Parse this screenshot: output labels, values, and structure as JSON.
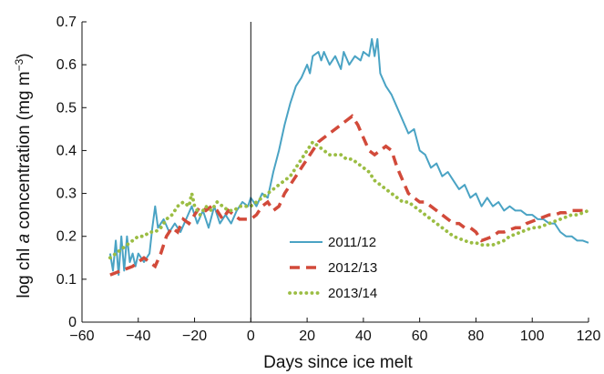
{
  "chart_data": {
    "type": "line",
    "title": "",
    "xlabel": "Days since ice melt",
    "ylabel_parts": {
      "prefix": "log chl ",
      "italic": "a",
      "middle": " concentration (mg m",
      "sup": "−3",
      "suffix": ")"
    },
    "xlim": [
      -60,
      120
    ],
    "ylim": [
      0,
      0.7
    ],
    "xticks": [
      -60,
      -40,
      -20,
      0,
      20,
      40,
      60,
      80,
      100,
      120
    ],
    "xtick_labels": [
      "−60",
      "−40",
      "−20",
      "0",
      "20",
      "40",
      "60",
      "80",
      "100",
      "120"
    ],
    "yticks": [
      0,
      0.1,
      0.2,
      0.3,
      0.4,
      0.5,
      0.6,
      0.7
    ],
    "ytick_labels": [
      "0",
      "0.1",
      "0.2",
      "0.3",
      "0.4",
      "0.5",
      "0.6",
      "0.7"
    ],
    "reference_line_x": 0,
    "grid": false,
    "legend_position": "center",
    "series": [
      {
        "name": "2011/12",
        "color": "#4aa3c4",
        "style": "solid",
        "points": [
          [
            -50,
            0.16
          ],
          [
            -49,
            0.12
          ],
          [
            -48,
            0.19
          ],
          [
            -47,
            0.11
          ],
          [
            -46,
            0.2
          ],
          [
            -45,
            0.12
          ],
          [
            -44,
            0.2
          ],
          [
            -43,
            0.14
          ],
          [
            -42,
            0.16
          ],
          [
            -41,
            0.13
          ],
          [
            -40,
            0.16
          ],
          [
            -38,
            0.14
          ],
          [
            -36,
            0.16
          ],
          [
            -35,
            0.22
          ],
          [
            -34,
            0.27
          ],
          [
            -33,
            0.22
          ],
          [
            -31,
            0.24
          ],
          [
            -29,
            0.21
          ],
          [
            -27,
            0.23
          ],
          [
            -25,
            0.21
          ],
          [
            -23,
            0.24
          ],
          [
            -21,
            0.27
          ],
          [
            -19,
            0.23
          ],
          [
            -17,
            0.26
          ],
          [
            -15,
            0.22
          ],
          [
            -13,
            0.27
          ],
          [
            -11,
            0.23
          ],
          [
            -9,
            0.25
          ],
          [
            -7,
            0.23
          ],
          [
            -5,
            0.26
          ],
          [
            -3,
            0.28
          ],
          [
            -1,
            0.27
          ],
          [
            0,
            0.29
          ],
          [
            2,
            0.27
          ],
          [
            4,
            0.3
          ],
          [
            6,
            0.29
          ],
          [
            8,
            0.35
          ],
          [
            10,
            0.4
          ],
          [
            12,
            0.46
          ],
          [
            14,
            0.51
          ],
          [
            16,
            0.55
          ],
          [
            18,
            0.57
          ],
          [
            20,
            0.6
          ],
          [
            21,
            0.58
          ],
          [
            22,
            0.62
          ],
          [
            24,
            0.63
          ],
          [
            25,
            0.61
          ],
          [
            26,
            0.63
          ],
          [
            28,
            0.6
          ],
          [
            30,
            0.62
          ],
          [
            32,
            0.59
          ],
          [
            33,
            0.63
          ],
          [
            35,
            0.6
          ],
          [
            37,
            0.62
          ],
          [
            39,
            0.61
          ],
          [
            40,
            0.63
          ],
          [
            42,
            0.62
          ],
          [
            43,
            0.66
          ],
          [
            44,
            0.62
          ],
          [
            45,
            0.66
          ],
          [
            46,
            0.58
          ],
          [
            48,
            0.55
          ],
          [
            50,
            0.53
          ],
          [
            52,
            0.5
          ],
          [
            54,
            0.47
          ],
          [
            56,
            0.44
          ],
          [
            58,
            0.45
          ],
          [
            60,
            0.4
          ],
          [
            62,
            0.39
          ],
          [
            64,
            0.36
          ],
          [
            66,
            0.37
          ],
          [
            68,
            0.34
          ],
          [
            70,
            0.35
          ],
          [
            72,
            0.33
          ],
          [
            74,
            0.31
          ],
          [
            76,
            0.32
          ],
          [
            78,
            0.29
          ],
          [
            80,
            0.3
          ],
          [
            82,
            0.27
          ],
          [
            84,
            0.29
          ],
          [
            86,
            0.27
          ],
          [
            88,
            0.28
          ],
          [
            90,
            0.26
          ],
          [
            92,
            0.27
          ],
          [
            94,
            0.26
          ],
          [
            96,
            0.26
          ],
          [
            98,
            0.25
          ],
          [
            100,
            0.25
          ],
          [
            102,
            0.24
          ],
          [
            104,
            0.24
          ],
          [
            106,
            0.23
          ],
          [
            108,
            0.23
          ],
          [
            110,
            0.21
          ],
          [
            112,
            0.2
          ],
          [
            114,
            0.2
          ],
          [
            116,
            0.19
          ],
          [
            118,
            0.19
          ],
          [
            120,
            0.185
          ]
        ]
      },
      {
        "name": "2012/13",
        "color": "#d24a3a",
        "style": "dashed",
        "points": [
          [
            -50,
            0.11
          ],
          [
            -46,
            0.12
          ],
          [
            -42,
            0.13
          ],
          [
            -40,
            0.14
          ],
          [
            -38,
            0.15
          ],
          [
            -36,
            0.14
          ],
          [
            -34,
            0.13
          ],
          [
            -32,
            0.16
          ],
          [
            -30,
            0.2
          ],
          [
            -28,
            0.22
          ],
          [
            -26,
            0.21
          ],
          [
            -24,
            0.24
          ],
          [
            -22,
            0.23
          ],
          [
            -20,
            0.25
          ],
          [
            -18,
            0.27
          ],
          [
            -16,
            0.26
          ],
          [
            -14,
            0.27
          ],
          [
            -12,
            0.26
          ],
          [
            -10,
            0.24
          ],
          [
            -8,
            0.26
          ],
          [
            -6,
            0.25
          ],
          [
            -4,
            0.24
          ],
          [
            -2,
            0.24
          ],
          [
            0,
            0.24
          ],
          [
            2,
            0.25
          ],
          [
            4,
            0.27
          ],
          [
            6,
            0.28
          ],
          [
            8,
            0.26
          ],
          [
            10,
            0.27
          ],
          [
            12,
            0.3
          ],
          [
            14,
            0.32
          ],
          [
            16,
            0.34
          ],
          [
            18,
            0.36
          ],
          [
            20,
            0.38
          ],
          [
            22,
            0.4
          ],
          [
            24,
            0.42
          ],
          [
            26,
            0.43
          ],
          [
            28,
            0.44
          ],
          [
            30,
            0.45
          ],
          [
            32,
            0.46
          ],
          [
            34,
            0.47
          ],
          [
            36,
            0.48
          ],
          [
            38,
            0.46
          ],
          [
            40,
            0.43
          ],
          [
            42,
            0.4
          ],
          [
            44,
            0.39
          ],
          [
            46,
            0.4
          ],
          [
            48,
            0.41
          ],
          [
            50,
            0.4
          ],
          [
            52,
            0.36
          ],
          [
            54,
            0.33
          ],
          [
            56,
            0.3
          ],
          [
            58,
            0.29
          ],
          [
            60,
            0.28
          ],
          [
            62,
            0.28
          ],
          [
            64,
            0.27
          ],
          [
            66,
            0.26
          ],
          [
            68,
            0.25
          ],
          [
            70,
            0.24
          ],
          [
            72,
            0.23
          ],
          [
            74,
            0.23
          ],
          [
            76,
            0.22
          ],
          [
            78,
            0.22
          ],
          [
            80,
            0.21
          ],
          [
            82,
            0.19
          ],
          [
            84,
            0.195
          ],
          [
            86,
            0.2
          ],
          [
            88,
            0.21
          ],
          [
            90,
            0.21
          ],
          [
            92,
            0.215
          ],
          [
            94,
            0.22
          ],
          [
            96,
            0.22
          ],
          [
            98,
            0.23
          ],
          [
            100,
            0.235
          ],
          [
            102,
            0.24
          ],
          [
            104,
            0.245
          ],
          [
            106,
            0.25
          ],
          [
            108,
            0.25
          ],
          [
            110,
            0.255
          ],
          [
            112,
            0.255
          ],
          [
            114,
            0.26
          ],
          [
            116,
            0.26
          ],
          [
            118,
            0.26
          ],
          [
            120,
            0.265
          ]
        ]
      },
      {
        "name": "2013/14",
        "color": "#9bbd43",
        "style": "dotted",
        "points": [
          [
            -50,
            0.15
          ],
          [
            -46,
            0.17
          ],
          [
            -42,
            0.19
          ],
          [
            -40,
            0.2
          ],
          [
            -38,
            0.2
          ],
          [
            -36,
            0.21
          ],
          [
            -34,
            0.21
          ],
          [
            -32,
            0.22
          ],
          [
            -30,
            0.24
          ],
          [
            -28,
            0.25
          ],
          [
            -26,
            0.27
          ],
          [
            -24,
            0.28
          ],
          [
            -22,
            0.27
          ],
          [
            -21,
            0.3
          ],
          [
            -20,
            0.27
          ],
          [
            -18,
            0.25
          ],
          [
            -16,
            0.27
          ],
          [
            -14,
            0.26
          ],
          [
            -12,
            0.28
          ],
          [
            -10,
            0.27
          ],
          [
            -8,
            0.26
          ],
          [
            -6,
            0.26
          ],
          [
            -4,
            0.27
          ],
          [
            -2,
            0.27
          ],
          [
            0,
            0.27
          ],
          [
            2,
            0.28
          ],
          [
            4,
            0.29
          ],
          [
            6,
            0.3
          ],
          [
            8,
            0.31
          ],
          [
            10,
            0.32
          ],
          [
            12,
            0.33
          ],
          [
            14,
            0.34
          ],
          [
            16,
            0.36
          ],
          [
            18,
            0.38
          ],
          [
            20,
            0.4
          ],
          [
            22,
            0.42
          ],
          [
            24,
            0.41
          ],
          [
            26,
            0.4
          ],
          [
            28,
            0.39
          ],
          [
            30,
            0.39
          ],
          [
            32,
            0.39
          ],
          [
            34,
            0.38
          ],
          [
            36,
            0.38
          ],
          [
            38,
            0.37
          ],
          [
            40,
            0.36
          ],
          [
            42,
            0.35
          ],
          [
            44,
            0.33
          ],
          [
            46,
            0.32
          ],
          [
            48,
            0.31
          ],
          [
            50,
            0.3
          ],
          [
            52,
            0.29
          ],
          [
            54,
            0.28
          ],
          [
            56,
            0.28
          ],
          [
            58,
            0.27
          ],
          [
            60,
            0.26
          ],
          [
            62,
            0.25
          ],
          [
            64,
            0.24
          ],
          [
            66,
            0.23
          ],
          [
            68,
            0.22
          ],
          [
            70,
            0.21
          ],
          [
            72,
            0.2
          ],
          [
            74,
            0.195
          ],
          [
            76,
            0.19
          ],
          [
            78,
            0.185
          ],
          [
            80,
            0.185
          ],
          [
            82,
            0.18
          ],
          [
            84,
            0.18
          ],
          [
            86,
            0.18
          ],
          [
            88,
            0.185
          ],
          [
            90,
            0.19
          ],
          [
            92,
            0.2
          ],
          [
            94,
            0.205
          ],
          [
            96,
            0.21
          ],
          [
            98,
            0.215
          ],
          [
            100,
            0.22
          ],
          [
            102,
            0.22
          ],
          [
            104,
            0.225
          ],
          [
            106,
            0.23
          ],
          [
            108,
            0.235
          ],
          [
            110,
            0.24
          ],
          [
            112,
            0.245
          ],
          [
            114,
            0.25
          ],
          [
            116,
            0.25
          ],
          [
            118,
            0.255
          ],
          [
            120,
            0.26
          ]
        ]
      }
    ]
  }
}
